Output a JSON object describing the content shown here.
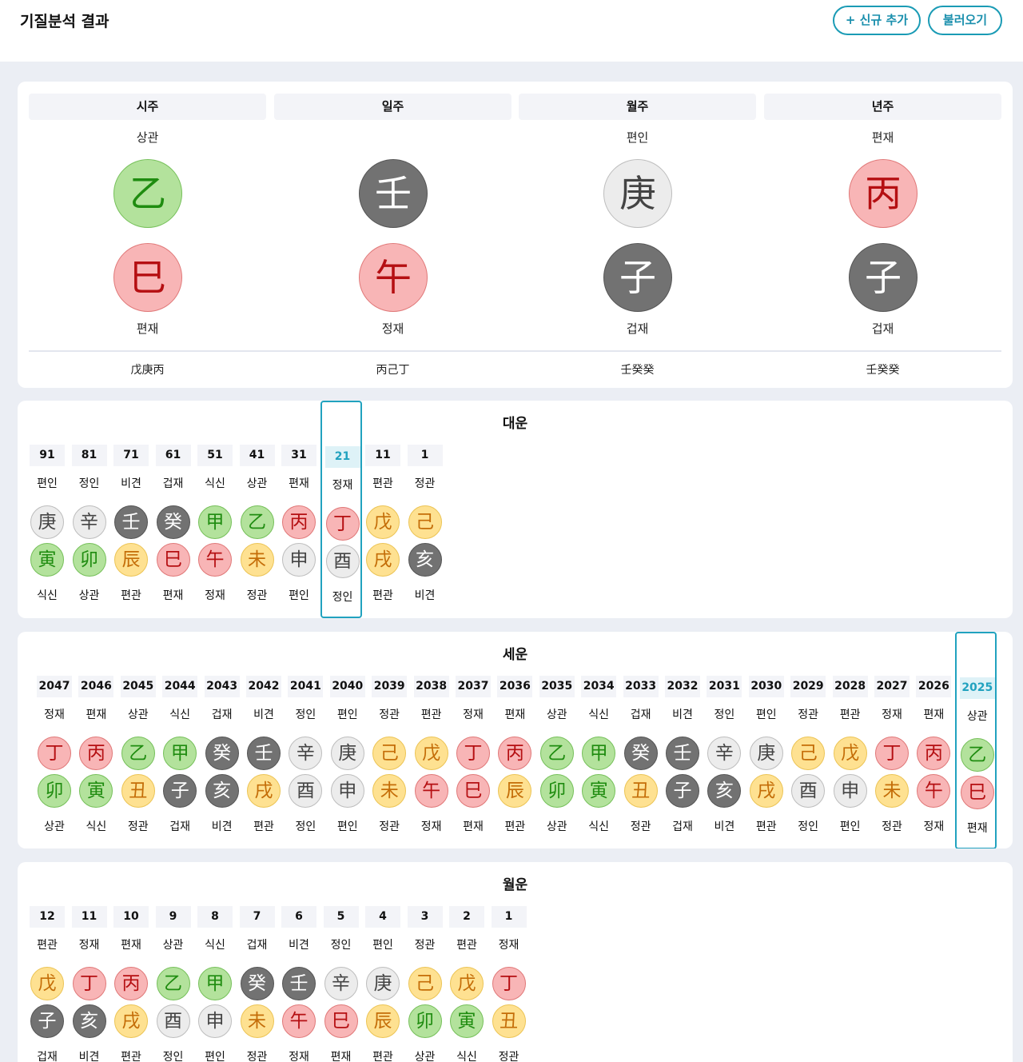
{
  "header": {
    "title": "기질분석 결과",
    "new_button": "+ 신규 추가",
    "load_button": "불러오기"
  },
  "pillars": [
    {
      "name": "시주",
      "stem_tengod": "상관",
      "stem": "乙",
      "stem_el": "wood",
      "branch": "巳",
      "branch_el": "fire",
      "branch_tengod": "편재",
      "hidden": "戊庚丙"
    },
    {
      "name": "일주",
      "stem_tengod": "",
      "stem": "壬",
      "stem_el": "water",
      "branch": "午",
      "branch_el": "fire",
      "branch_tengod": "정재",
      "hidden": "丙己丁"
    },
    {
      "name": "월주",
      "stem_tengod": "편인",
      "stem": "庚",
      "stem_el": "metal",
      "branch": "子",
      "branch_el": "water",
      "branch_tengod": "겁재",
      "hidden": "壬癸癸"
    },
    {
      "name": "년주",
      "stem_tengod": "편재",
      "stem": "丙",
      "stem_el": "fire",
      "branch": "子",
      "branch_el": "water",
      "branch_tengod": "겁재",
      "hidden": "壬癸癸"
    }
  ],
  "daeun": {
    "title": "대운",
    "highlight": "21",
    "items": [
      {
        "label": "91",
        "t1": "편인",
        "s": "庚",
        "se": "metal",
        "b": "寅",
        "be": "wood",
        "t2": "식신"
      },
      {
        "label": "81",
        "t1": "정인",
        "s": "辛",
        "se": "metal",
        "b": "卯",
        "be": "wood",
        "t2": "상관"
      },
      {
        "label": "71",
        "t1": "비견",
        "s": "壬",
        "se": "water",
        "b": "辰",
        "be": "earth",
        "t2": "편관"
      },
      {
        "label": "61",
        "t1": "겁재",
        "s": "癸",
        "se": "water",
        "b": "巳",
        "be": "fire",
        "t2": "편재"
      },
      {
        "label": "51",
        "t1": "식신",
        "s": "甲",
        "se": "wood",
        "b": "午",
        "be": "fire",
        "t2": "정재"
      },
      {
        "label": "41",
        "t1": "상관",
        "s": "乙",
        "se": "wood",
        "b": "未",
        "be": "earth",
        "t2": "정관"
      },
      {
        "label": "31",
        "t1": "편재",
        "s": "丙",
        "se": "fire",
        "b": "申",
        "be": "metal",
        "t2": "편인"
      },
      {
        "label": "21",
        "t1": "정재",
        "s": "丁",
        "se": "fire",
        "b": "酉",
        "be": "metal",
        "t2": "정인"
      },
      {
        "label": "11",
        "t1": "편관",
        "s": "戊",
        "se": "earth",
        "b": "戌",
        "be": "earth",
        "t2": "편관"
      },
      {
        "label": "1",
        "t1": "정관",
        "s": "己",
        "se": "earth",
        "b": "亥",
        "be": "water",
        "t2": "비견"
      }
    ]
  },
  "seun": {
    "title": "세운",
    "highlight": "2025",
    "items": [
      {
        "label": "2047",
        "t1": "정재",
        "s": "丁",
        "se": "fire",
        "b": "卯",
        "be": "wood",
        "t2": "상관"
      },
      {
        "label": "2046",
        "t1": "편재",
        "s": "丙",
        "se": "fire",
        "b": "寅",
        "be": "wood",
        "t2": "식신"
      },
      {
        "label": "2045",
        "t1": "상관",
        "s": "乙",
        "se": "wood",
        "b": "丑",
        "be": "earth",
        "t2": "정관"
      },
      {
        "label": "2044",
        "t1": "식신",
        "s": "甲",
        "se": "wood",
        "b": "子",
        "be": "water",
        "t2": "겁재"
      },
      {
        "label": "2043",
        "t1": "겁재",
        "s": "癸",
        "se": "water",
        "b": "亥",
        "be": "water",
        "t2": "비견"
      },
      {
        "label": "2042",
        "t1": "비견",
        "s": "壬",
        "se": "water",
        "b": "戌",
        "be": "earth",
        "t2": "편관"
      },
      {
        "label": "2041",
        "t1": "정인",
        "s": "辛",
        "se": "metal",
        "b": "酉",
        "be": "metal",
        "t2": "정인"
      },
      {
        "label": "2040",
        "t1": "편인",
        "s": "庚",
        "se": "metal",
        "b": "申",
        "be": "metal",
        "t2": "편인"
      },
      {
        "label": "2039",
        "t1": "정관",
        "s": "己",
        "se": "earth",
        "b": "未",
        "be": "earth",
        "t2": "정관"
      },
      {
        "label": "2038",
        "t1": "편관",
        "s": "戊",
        "se": "earth",
        "b": "午",
        "be": "fire",
        "t2": "정재"
      },
      {
        "label": "2037",
        "t1": "정재",
        "s": "丁",
        "se": "fire",
        "b": "巳",
        "be": "fire",
        "t2": "편재"
      },
      {
        "label": "2036",
        "t1": "편재",
        "s": "丙",
        "se": "fire",
        "b": "辰",
        "be": "earth",
        "t2": "편관"
      },
      {
        "label": "2035",
        "t1": "상관",
        "s": "乙",
        "se": "wood",
        "b": "卯",
        "be": "wood",
        "t2": "상관"
      },
      {
        "label": "2034",
        "t1": "식신",
        "s": "甲",
        "se": "wood",
        "b": "寅",
        "be": "wood",
        "t2": "식신"
      },
      {
        "label": "2033",
        "t1": "겁재",
        "s": "癸",
        "se": "water",
        "b": "丑",
        "be": "earth",
        "t2": "정관"
      },
      {
        "label": "2032",
        "t1": "비견",
        "s": "壬",
        "se": "water",
        "b": "子",
        "be": "water",
        "t2": "겁재"
      },
      {
        "label": "2031",
        "t1": "정인",
        "s": "辛",
        "se": "metal",
        "b": "亥",
        "be": "water",
        "t2": "비견"
      },
      {
        "label": "2030",
        "t1": "편인",
        "s": "庚",
        "se": "metal",
        "b": "戌",
        "be": "earth",
        "t2": "편관"
      },
      {
        "label": "2029",
        "t1": "정관",
        "s": "己",
        "se": "earth",
        "b": "酉",
        "be": "metal",
        "t2": "정인"
      },
      {
        "label": "2028",
        "t1": "편관",
        "s": "戊",
        "se": "earth",
        "b": "申",
        "be": "metal",
        "t2": "편인"
      },
      {
        "label": "2027",
        "t1": "정재",
        "s": "丁",
        "se": "fire",
        "b": "未",
        "be": "earth",
        "t2": "정관"
      },
      {
        "label": "2026",
        "t1": "편재",
        "s": "丙",
        "se": "fire",
        "b": "午",
        "be": "fire",
        "t2": "정재"
      },
      {
        "label": "2025",
        "t1": "상관",
        "s": "乙",
        "se": "wood",
        "b": "巳",
        "be": "fire",
        "t2": "편재"
      }
    ]
  },
  "wolun": {
    "title": "월운",
    "highlight": "",
    "items": [
      {
        "label": "12",
        "t1": "편관",
        "s": "戊",
        "se": "earth",
        "b": "子",
        "be": "water",
        "t2": "겁재"
      },
      {
        "label": "11",
        "t1": "정재",
        "s": "丁",
        "se": "fire",
        "b": "亥",
        "be": "water",
        "t2": "비견"
      },
      {
        "label": "10",
        "t1": "편재",
        "s": "丙",
        "se": "fire",
        "b": "戌",
        "be": "earth",
        "t2": "편관"
      },
      {
        "label": "9",
        "t1": "상관",
        "s": "乙",
        "se": "wood",
        "b": "酉",
        "be": "metal",
        "t2": "정인"
      },
      {
        "label": "8",
        "t1": "식신",
        "s": "甲",
        "se": "wood",
        "b": "申",
        "be": "metal",
        "t2": "편인"
      },
      {
        "label": "7",
        "t1": "겁재",
        "s": "癸",
        "se": "water",
        "b": "未",
        "be": "earth",
        "t2": "정관"
      },
      {
        "label": "6",
        "t1": "비견",
        "s": "壬",
        "se": "water",
        "b": "午",
        "be": "fire",
        "t2": "정재"
      },
      {
        "label": "5",
        "t1": "정인",
        "s": "辛",
        "se": "metal",
        "b": "巳",
        "be": "fire",
        "t2": "편재"
      },
      {
        "label": "4",
        "t1": "편인",
        "s": "庚",
        "se": "metal",
        "b": "辰",
        "be": "earth",
        "t2": "편관"
      },
      {
        "label": "3",
        "t1": "정관",
        "s": "己",
        "se": "earth",
        "b": "卯",
        "be": "wood",
        "t2": "상관"
      },
      {
        "label": "2",
        "t1": "편관",
        "s": "戊",
        "se": "earth",
        "b": "寅",
        "be": "wood",
        "t2": "식신"
      },
      {
        "label": "1",
        "t1": "정재",
        "s": "丁",
        "se": "fire",
        "b": "丑",
        "be": "earth",
        "t2": "정관"
      }
    ]
  },
  "colors": {
    "accent": "#21a2bf",
    "wood": "#b3e29c",
    "fire": "#f8b5b6",
    "earth": "#fee191",
    "metal": "#ececec",
    "water": "#727272"
  }
}
